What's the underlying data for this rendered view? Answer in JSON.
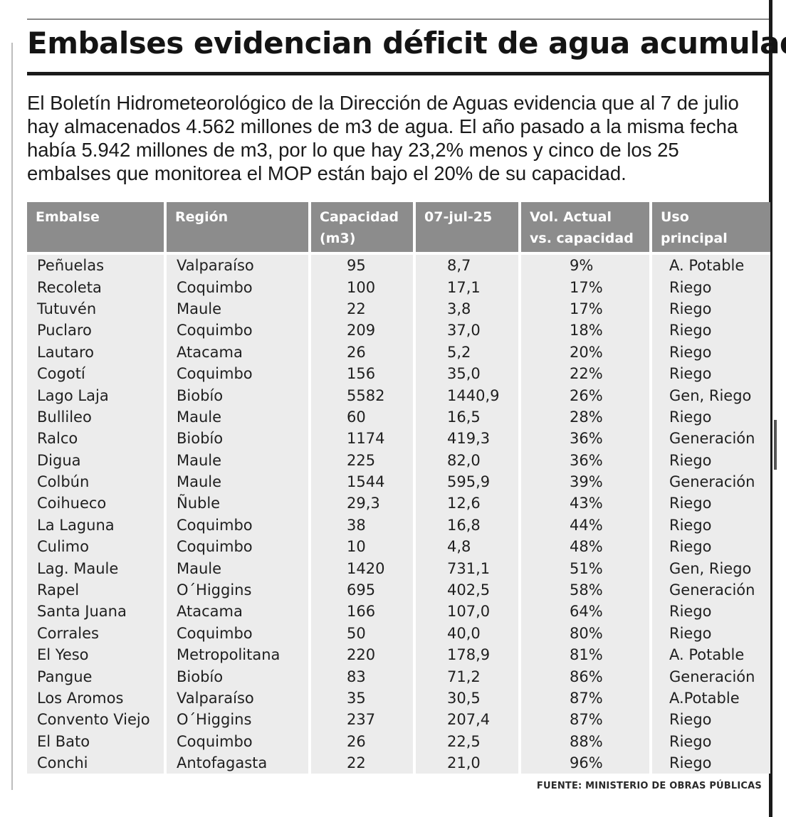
{
  "title": "Embalses evidencian déficit de agua acumulada",
  "intro": "El Boletín Hidrometeorológico de la Dirección de Aguas evidencia que al 7 de julio hay almacenados 4.562 millones de m3 de agua. El año pasado a la misma fecha había 5.942 millones de m3, por lo que hay 23,2% menos y cinco de los 25 embalses que monitorea el MOP están bajo el 20% de su capacidad.",
  "source": "FUENTE: MINISTERIO DE OBRAS PÚBLICAS",
  "chart_data": {
    "type": "table",
    "columns": [
      {
        "line1": "Embalse",
        "line2": ""
      },
      {
        "line1": "Región",
        "line2": ""
      },
      {
        "line1": "Capacidad",
        "line2": "(m3)"
      },
      {
        "line1": "07-jul-25",
        "line2": ""
      },
      {
        "line1": "Vol. Actual",
        "line2": "vs. capacidad"
      },
      {
        "line1": "Uso",
        "line2": "principal"
      }
    ],
    "rows": [
      [
        "Peñuelas",
        "Valparaíso",
        "95",
        "8,7",
        "9%",
        "A. Potable"
      ],
      [
        "Recoleta",
        "Coquimbo",
        "100",
        "17,1",
        "17%",
        "Riego"
      ],
      [
        "Tutuvén",
        "Maule",
        "22",
        "3,8",
        "17%",
        "Riego"
      ],
      [
        "Puclaro",
        "Coquimbo",
        "209",
        "37,0",
        "18%",
        "Riego"
      ],
      [
        "Lautaro",
        "Atacama",
        "26",
        "5,2",
        "20%",
        "Riego"
      ],
      [
        "Cogotí",
        "Coquimbo",
        "156",
        "35,0",
        "22%",
        "Riego"
      ],
      [
        "Lago Laja",
        "Biobío",
        "5582",
        "1440,9",
        "26%",
        "Gen, Riego"
      ],
      [
        "Bullileo",
        "Maule",
        "60",
        "16,5",
        "28%",
        "Riego"
      ],
      [
        "Ralco",
        "Biobío",
        "1174",
        "419,3",
        "36%",
        "Generación"
      ],
      [
        "Digua",
        "Maule",
        "225",
        "82,0",
        "36%",
        "Riego"
      ],
      [
        "Colbún",
        "Maule",
        "1544",
        "595,9",
        "39%",
        "Generación"
      ],
      [
        "Coihueco",
        "Ñuble",
        "29,3",
        "12,6",
        "43%",
        "Riego"
      ],
      [
        "La Laguna",
        "Coquimbo",
        "38",
        "16,8",
        "44%",
        "Riego"
      ],
      [
        "Culimo",
        "Coquimbo",
        "10",
        "4,8",
        "48%",
        "Riego"
      ],
      [
        "Lag. Maule",
        "Maule",
        "1420",
        "731,1",
        "51%",
        "Gen, Riego"
      ],
      [
        "Rapel",
        "O´Higgins",
        "695",
        "402,5",
        "58%",
        "Generación"
      ],
      [
        "Santa Juana",
        "Atacama",
        "166",
        "107,0",
        "64%",
        "Riego"
      ],
      [
        "Corrales",
        "Coquimbo",
        "50",
        "40,0",
        "80%",
        "Riego"
      ],
      [
        "El Yeso",
        "Metropolitana",
        "220",
        "178,9",
        "81%",
        "A. Potable"
      ],
      [
        "Pangue",
        "Biobío",
        "83",
        "71,2",
        "86%",
        "Generación"
      ],
      [
        "Los Aromos",
        "Valparaíso",
        "35",
        "30,5",
        "87%",
        "A.Potable"
      ],
      [
        "Convento Viejo",
        "O´Higgins",
        "237",
        "207,4",
        "87%",
        "Riego"
      ],
      [
        "El Bato",
        "Coquimbo",
        "26",
        "22,5",
        "88%",
        "Riego"
      ],
      [
        "Conchi",
        "Antofagasta",
        "22",
        "21,0",
        "96%",
        "Riego"
      ]
    ],
    "colors": {
      "header_bg": "#8c8c8c",
      "row_bg": "#ececec",
      "title_rule": "#1a1a1a"
    }
  }
}
